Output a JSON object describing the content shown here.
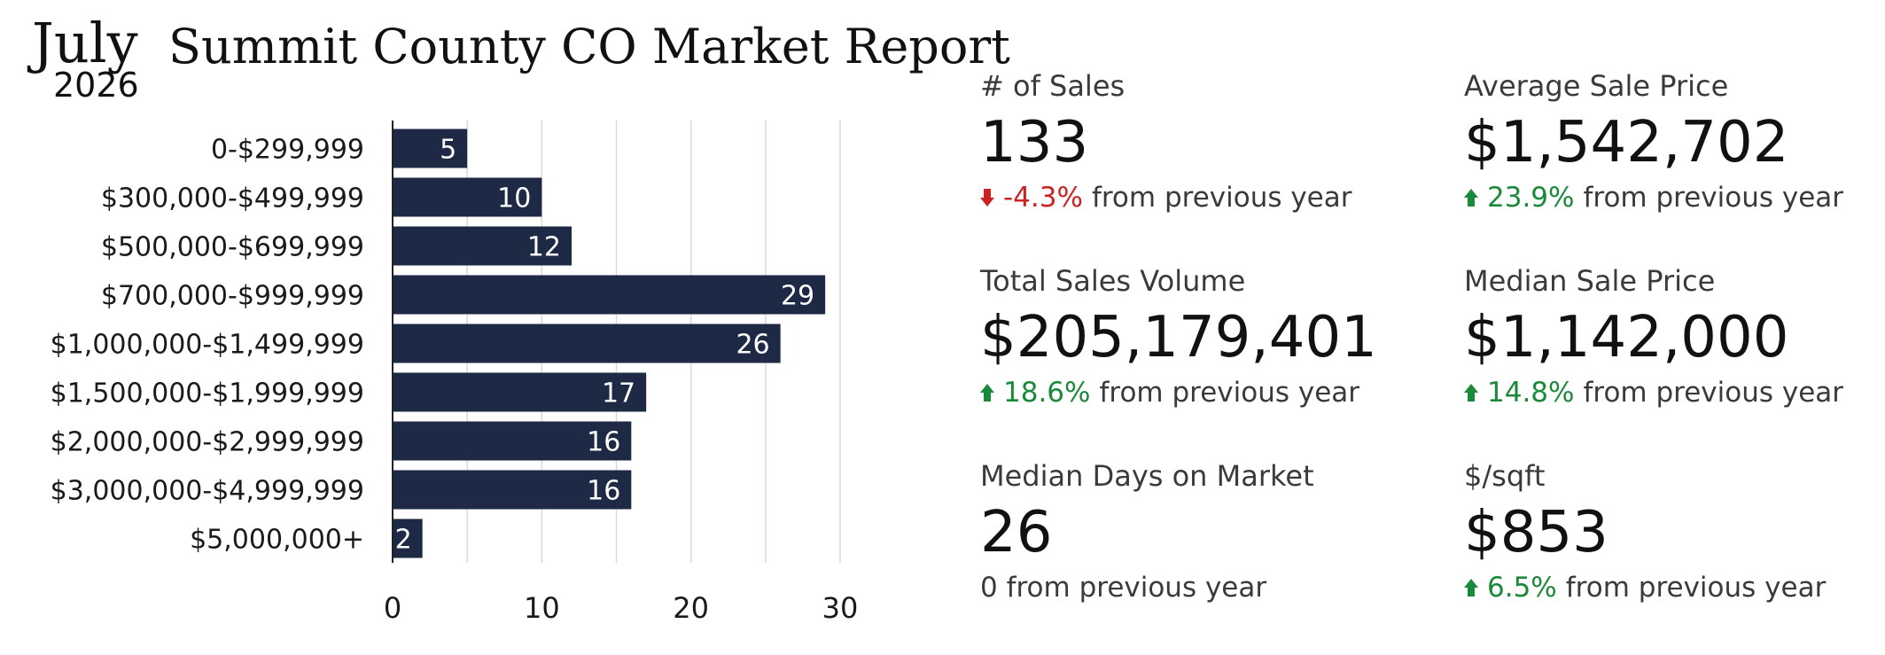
{
  "header": {
    "month": "July",
    "year": "2026",
    "title": "Summit County CO Market Report"
  },
  "chart_data": {
    "type": "bar",
    "orientation": "horizontal",
    "categories": [
      "0-$299,999",
      "$300,000-$499,999",
      "$500,000-$699,999",
      "$700,000-$999,999",
      "$1,000,000-$1,499,999",
      "$1,500,000-$1,999,999",
      "$2,000,000-$2,999,999",
      "$3,000,000-$4,999,999",
      "$5,000,000+"
    ],
    "values": [
      5,
      10,
      12,
      29,
      26,
      17,
      16,
      16,
      2
    ],
    "data_labels": [
      "5",
      "10",
      "12",
      "29",
      "26",
      "17",
      "16",
      "16",
      "2"
    ],
    "xticks": [
      "0",
      "10",
      "20",
      "30"
    ],
    "xlim": [
      0,
      30
    ],
    "grid": "vertical",
    "bar_color": "#1e2a45"
  },
  "stats": {
    "sales": {
      "label": "# of Sales",
      "value": "133",
      "change": "-4.3%",
      "direction": "down",
      "suffix": "from previous year",
      "color": "#cc2222"
    },
    "avg_price": {
      "label": "Average Sale Price",
      "value": "$1,542,702",
      "change": "23.9%",
      "direction": "up",
      "suffix": "from previous year",
      "color": "#1a8a3a"
    },
    "volume": {
      "label": "Total Sales Volume",
      "value": "$205,179,401",
      "change": "18.6%",
      "direction": "up",
      "suffix": "from previous year",
      "color": "#1a8a3a"
    },
    "median_price": {
      "label": "Median Sale Price",
      "value": "$1,142,000",
      "change": "14.8%",
      "direction": "up",
      "suffix": "from previous year",
      "color": "#1a8a3a"
    },
    "days": {
      "label": "Median Days on Market",
      "value": "26",
      "change_text": "0 from previous year"
    },
    "sqft": {
      "label": "$/sqft",
      "value": "$853",
      "change": "6.5%",
      "direction": "up",
      "suffix": "from previous year",
      "color": "#1a8a3a"
    }
  }
}
